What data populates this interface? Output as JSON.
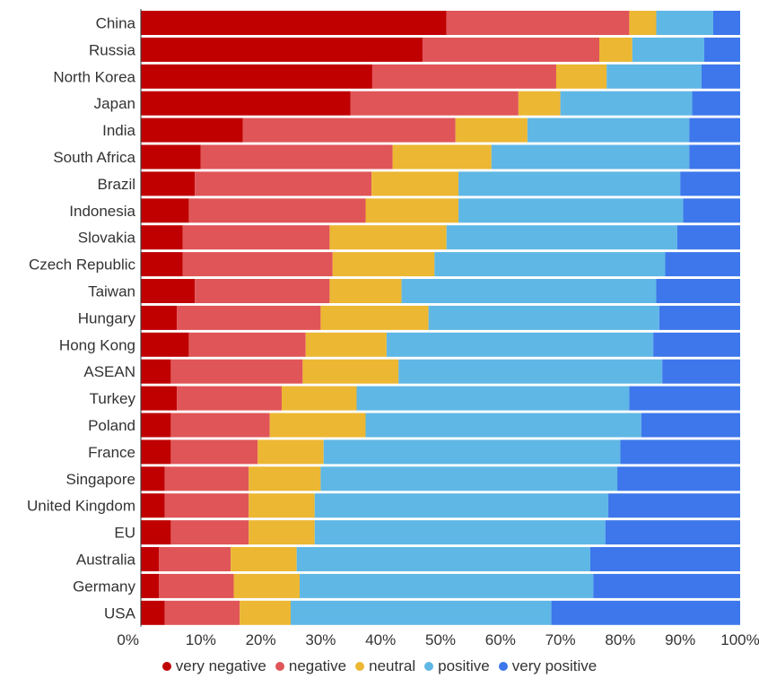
{
  "chart_data": {
    "type": "bar",
    "orientation": "horizontal",
    "stacked": true,
    "normalized": true,
    "categories": [
      "China",
      "Russia",
      "North Korea",
      "Japan",
      "India",
      "South Africa",
      "Brazil",
      "Indonesia",
      "Slovakia",
      "Czech Republic",
      "Taiwan",
      "Hungary",
      "Hong Kong",
      "ASEAN",
      "Turkey",
      "Poland",
      "France",
      "Singapore",
      "United Kingdom",
      "EU",
      "Australia",
      "Germany",
      "USA"
    ],
    "series": [
      {
        "name": "very negative",
        "color": "#c00000",
        "values": [
          51,
          47,
          39,
          35,
          17,
          10,
          9,
          8,
          7,
          7,
          9,
          6,
          8,
          5,
          6,
          5,
          5,
          4,
          4,
          5,
          3,
          3,
          4
        ]
      },
      {
        "name": "negative",
        "color": "#e05558",
        "values": [
          30.5,
          29.5,
          31,
          28,
          35.5,
          32,
          29.5,
          29.5,
          24.5,
          25,
          22.5,
          24,
          19.5,
          22,
          17.5,
          16.5,
          14.5,
          14,
          14,
          13,
          12,
          12.5,
          12.5
        ]
      },
      {
        "name": "neutral",
        "color": "#ecb732",
        "values": [
          4.5,
          5.5,
          8.5,
          7,
          12,
          16.5,
          14.5,
          15.5,
          19.5,
          17,
          12,
          18,
          13.5,
          16,
          12.5,
          16,
          11,
          12,
          11,
          11,
          11,
          11,
          8.5
        ]
      },
      {
        "name": "positive",
        "color": "#5fb7e5",
        "values": [
          9.5,
          12,
          16,
          22,
          27,
          33,
          37,
          37.5,
          38.5,
          38.5,
          42.5,
          38.5,
          44.5,
          44,
          45.5,
          46,
          49.5,
          49.5,
          49,
          48.5,
          49,
          49,
          43.5
        ]
      },
      {
        "name": "very positive",
        "color": "#3d77eb",
        "values": [
          4.5,
          6,
          6.5,
          8,
          8.5,
          8.5,
          10,
          9.5,
          10.5,
          12.5,
          14,
          13.5,
          14.5,
          13,
          18.5,
          16.5,
          20,
          20.5,
          22,
          22.5,
          25,
          24.5,
          31.5
        ]
      }
    ],
    "xlim": [
      0,
      100
    ],
    "xticks": [
      "0%",
      "10%",
      "20%",
      "30%",
      "40%",
      "50%",
      "60%",
      "70%",
      "80%",
      "90%",
      "100%"
    ],
    "title": "",
    "xlabel": "",
    "ylabel": "",
    "legend_position": "bottom"
  }
}
